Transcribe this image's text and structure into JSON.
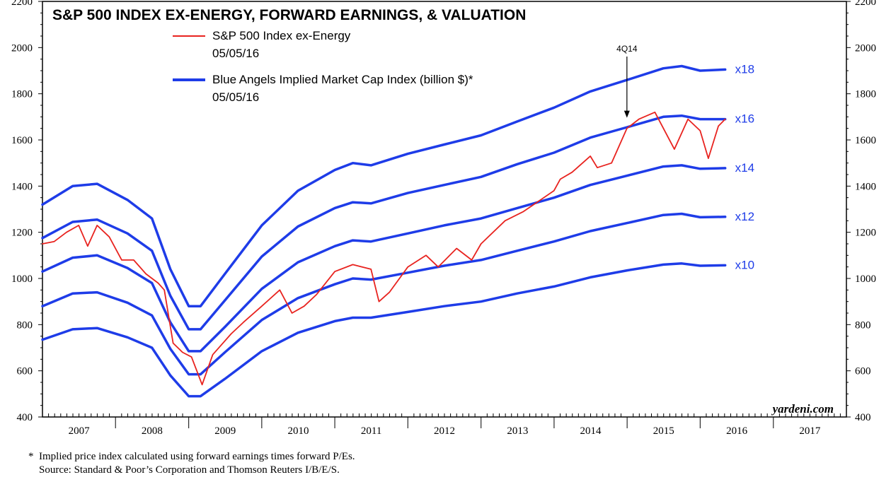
{
  "chart_data": {
    "type": "line",
    "title": "S&P 500 INDEX EX-ENERGY, FORWARD EARNINGS, & VALUATION",
    "ylim": [
      400,
      2200
    ],
    "yticks": [
      400,
      600,
      800,
      1000,
      1200,
      1400,
      1600,
      1800,
      2000,
      2200
    ],
    "xlim": [
      "2007-01-01",
      "2018-01-01"
    ],
    "x_ticks": [
      "2007",
      "2008",
      "2009",
      "2010",
      "2011",
      "2012",
      "2013",
      "2014",
      "2015",
      "2016",
      "2017"
    ],
    "grid": false,
    "legend_position": "top-left",
    "legend": [
      {
        "label": "S&P 500 Index ex-Energy",
        "date": "05/05/16",
        "color": "#e8231f"
      },
      {
        "label": "Blue Angels Implied Market Cap Index (billion $)*",
        "date": "05/05/16",
        "color": "#1e3ce8"
      }
    ],
    "annotation": {
      "label": "4Q14",
      "x": "2014-12-31",
      "y": 1690
    },
    "watermark": "yardeni.com",
    "series": [
      {
        "name": "x18",
        "color": "#1e3ce8",
        "points": [
          [
            "2007-01-01",
            1320
          ],
          [
            "2007-06-01",
            1400
          ],
          [
            "2007-10-01",
            1410
          ],
          [
            "2008-03-01",
            1340
          ],
          [
            "2008-07-01",
            1260
          ],
          [
            "2008-10-01",
            1040
          ],
          [
            "2009-01-01",
            880
          ],
          [
            "2009-03-01",
            880
          ],
          [
            "2009-07-01",
            1020
          ],
          [
            "2010-01-01",
            1230
          ],
          [
            "2010-07-01",
            1380
          ],
          [
            "2011-01-01",
            1470
          ],
          [
            "2011-04-01",
            1500
          ],
          [
            "2011-07-01",
            1490
          ],
          [
            "2012-01-01",
            1540
          ],
          [
            "2012-07-01",
            1580
          ],
          [
            "2013-01-01",
            1620
          ],
          [
            "2013-07-01",
            1680
          ],
          [
            "2014-01-01",
            1740
          ],
          [
            "2014-07-01",
            1810
          ],
          [
            "2015-01-01",
            1860
          ],
          [
            "2015-07-01",
            1910
          ],
          [
            "2015-10-01",
            1920
          ],
          [
            "2016-01-01",
            1900
          ],
          [
            "2016-05-05",
            1905
          ]
        ]
      },
      {
        "name": "x16",
        "color": "#1e3ce8",
        "points": [
          [
            "2007-01-01",
            1175
          ],
          [
            "2007-06-01",
            1245
          ],
          [
            "2007-10-01",
            1255
          ],
          [
            "2008-03-01",
            1195
          ],
          [
            "2008-07-01",
            1120
          ],
          [
            "2008-10-01",
            925
          ],
          [
            "2009-01-01",
            780
          ],
          [
            "2009-03-01",
            780
          ],
          [
            "2009-07-01",
            905
          ],
          [
            "2010-01-01",
            1095
          ],
          [
            "2010-07-01",
            1225
          ],
          [
            "2011-01-01",
            1305
          ],
          [
            "2011-04-01",
            1330
          ],
          [
            "2011-07-01",
            1325
          ],
          [
            "2012-01-01",
            1370
          ],
          [
            "2012-07-01",
            1405
          ],
          [
            "2013-01-01",
            1440
          ],
          [
            "2013-07-01",
            1495
          ],
          [
            "2014-01-01",
            1545
          ],
          [
            "2014-07-01",
            1610
          ],
          [
            "2015-01-01",
            1655
          ],
          [
            "2015-07-01",
            1700
          ],
          [
            "2015-10-01",
            1705
          ],
          [
            "2016-01-01",
            1690
          ],
          [
            "2016-05-05",
            1690
          ]
        ]
      },
      {
        "name": "x14",
        "color": "#1e3ce8",
        "points": [
          [
            "2007-01-01",
            1030
          ],
          [
            "2007-06-01",
            1090
          ],
          [
            "2007-10-01",
            1100
          ],
          [
            "2008-03-01",
            1045
          ],
          [
            "2008-07-01",
            980
          ],
          [
            "2008-10-01",
            810
          ],
          [
            "2009-01-01",
            685
          ],
          [
            "2009-03-01",
            685
          ],
          [
            "2009-07-01",
            790
          ],
          [
            "2010-01-01",
            955
          ],
          [
            "2010-07-01",
            1070
          ],
          [
            "2011-01-01",
            1140
          ],
          [
            "2011-04-01",
            1165
          ],
          [
            "2011-07-01",
            1160
          ],
          [
            "2012-01-01",
            1195
          ],
          [
            "2012-07-01",
            1230
          ],
          [
            "2013-01-01",
            1260
          ],
          [
            "2013-07-01",
            1305
          ],
          [
            "2014-01-01",
            1350
          ],
          [
            "2014-07-01",
            1405
          ],
          [
            "2015-01-01",
            1445
          ],
          [
            "2015-07-01",
            1485
          ],
          [
            "2015-10-01",
            1490
          ],
          [
            "2016-01-01",
            1475
          ],
          [
            "2016-05-05",
            1478
          ]
        ]
      },
      {
        "name": "x12",
        "color": "#1e3ce8",
        "points": [
          [
            "2007-01-01",
            880
          ],
          [
            "2007-06-01",
            935
          ],
          [
            "2007-10-01",
            940
          ],
          [
            "2008-03-01",
            895
          ],
          [
            "2008-07-01",
            840
          ],
          [
            "2008-10-01",
            695
          ],
          [
            "2009-01-01",
            585
          ],
          [
            "2009-03-01",
            585
          ],
          [
            "2009-07-01",
            680
          ],
          [
            "2010-01-01",
            820
          ],
          [
            "2010-07-01",
            915
          ],
          [
            "2011-01-01",
            975
          ],
          [
            "2011-04-01",
            1000
          ],
          [
            "2011-07-01",
            995
          ],
          [
            "2012-01-01",
            1025
          ],
          [
            "2012-07-01",
            1055
          ],
          [
            "2013-01-01",
            1080
          ],
          [
            "2013-07-01",
            1120
          ],
          [
            "2014-01-01",
            1160
          ],
          [
            "2014-07-01",
            1205
          ],
          [
            "2015-01-01",
            1240
          ],
          [
            "2015-07-01",
            1275
          ],
          [
            "2015-10-01",
            1280
          ],
          [
            "2016-01-01",
            1265
          ],
          [
            "2016-05-05",
            1267
          ]
        ]
      },
      {
        "name": "x10",
        "color": "#1e3ce8",
        "points": [
          [
            "2007-01-01",
            735
          ],
          [
            "2007-06-01",
            780
          ],
          [
            "2007-10-01",
            785
          ],
          [
            "2008-03-01",
            745
          ],
          [
            "2008-07-01",
            700
          ],
          [
            "2008-10-01",
            580
          ],
          [
            "2009-01-01",
            490
          ],
          [
            "2009-03-01",
            490
          ],
          [
            "2009-07-01",
            565
          ],
          [
            "2010-01-01",
            685
          ],
          [
            "2010-07-01",
            765
          ],
          [
            "2011-01-01",
            815
          ],
          [
            "2011-04-01",
            830
          ],
          [
            "2011-07-01",
            830
          ],
          [
            "2012-01-01",
            855
          ],
          [
            "2012-07-01",
            880
          ],
          [
            "2013-01-01",
            900
          ],
          [
            "2013-07-01",
            935
          ],
          [
            "2014-01-01",
            965
          ],
          [
            "2014-07-01",
            1005
          ],
          [
            "2015-01-01",
            1035
          ],
          [
            "2015-07-01",
            1060
          ],
          [
            "2015-10-01",
            1065
          ],
          [
            "2016-01-01",
            1055
          ],
          [
            "2016-05-05",
            1057
          ]
        ]
      },
      {
        "name": "S&P 500 Index ex-Energy",
        "color": "#e8231f",
        "points": [
          [
            "2007-01-01",
            1150
          ],
          [
            "2007-03-01",
            1160
          ],
          [
            "2007-05-01",
            1200
          ],
          [
            "2007-07-01",
            1230
          ],
          [
            "2007-08-15",
            1140
          ],
          [
            "2007-10-01",
            1230
          ],
          [
            "2007-12-01",
            1180
          ],
          [
            "2008-02-01",
            1080
          ],
          [
            "2008-04-01",
            1080
          ],
          [
            "2008-06-01",
            1020
          ],
          [
            "2008-08-01",
            980
          ],
          [
            "2008-09-01",
            950
          ],
          [
            "2008-10-15",
            720
          ],
          [
            "2008-12-01",
            680
          ],
          [
            "2009-01-15",
            660
          ],
          [
            "2009-03-09",
            540
          ],
          [
            "2009-05-01",
            670
          ],
          [
            "2009-08-01",
            760
          ],
          [
            "2009-10-01",
            810
          ],
          [
            "2010-01-01",
            880
          ],
          [
            "2010-04-01",
            950
          ],
          [
            "2010-06-01",
            850
          ],
          [
            "2010-08-01",
            880
          ],
          [
            "2010-10-01",
            930
          ],
          [
            "2011-01-01",
            1030
          ],
          [
            "2011-04-01",
            1060
          ],
          [
            "2011-07-01",
            1040
          ],
          [
            "2011-08-10",
            900
          ],
          [
            "2011-10-01",
            940
          ],
          [
            "2012-01-01",
            1050
          ],
          [
            "2012-04-01",
            1100
          ],
          [
            "2012-06-01",
            1050
          ],
          [
            "2012-09-01",
            1130
          ],
          [
            "2012-11-15",
            1080
          ],
          [
            "2013-01-01",
            1150
          ],
          [
            "2013-05-01",
            1250
          ],
          [
            "2013-08-01",
            1290
          ],
          [
            "2013-12-31",
            1380
          ],
          [
            "2014-02-01",
            1430
          ],
          [
            "2014-04-01",
            1460
          ],
          [
            "2014-07-01",
            1530
          ],
          [
            "2014-08-05",
            1480
          ],
          [
            "2014-10-15",
            1500
          ],
          [
            "2014-12-31",
            1650
          ],
          [
            "2015-03-01",
            1690
          ],
          [
            "2015-05-20",
            1720
          ],
          [
            "2015-08-25",
            1560
          ],
          [
            "2015-11-01",
            1690
          ],
          [
            "2016-01-01",
            1640
          ],
          [
            "2016-02-11",
            1520
          ],
          [
            "2016-04-01",
            1660
          ],
          [
            "2016-05-05",
            1690
          ]
        ]
      }
    ]
  },
  "footnotes": [
    "*  Implied price index calculated using forward earnings times forward P/Es.",
    "    Source: Standard & Poor’s Corporation and Thomson Reuters I/B/E/S."
  ]
}
